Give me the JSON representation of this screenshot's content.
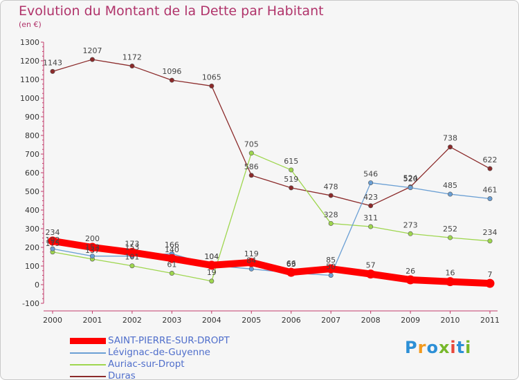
{
  "title": "Evolution du Montant de la Dette par Habitant",
  "subtitle": "(en €)",
  "logo": {
    "text": "Proxiti",
    "colors": [
      "#2c8fd6",
      "#f29a1f",
      "#2c8fd6",
      "#77b82a",
      "#e8483b",
      "#2c8fd6",
      "#77b82a"
    ]
  },
  "chart_data": {
    "type": "line",
    "x": [
      "2000",
      "2001",
      "2002",
      "2003",
      "2004",
      "2005",
      "2006",
      "2007",
      "2008",
      "2009",
      "2010",
      "2011"
    ],
    "ylim": [
      -100,
      1300
    ],
    "yticks": [
      -100,
      0,
      100,
      200,
      300,
      400,
      500,
      600,
      700,
      800,
      900,
      1000,
      1100,
      1200,
      1300
    ],
    "grid": false,
    "legend_position": "bottom",
    "series": [
      {
        "name": "SAINT-PIERRE-SUR-DROPT",
        "color": "#ff0000",
        "width": 10,
        "labels": true,
        "values": [
          234,
          200,
          173,
          140,
          104,
          119,
          66,
          85,
          57,
          26,
          16,
          7
        ]
      },
      {
        "name": "Lévignac-de-Guyenne",
        "color": "#6a9fd4",
        "width": 1.3,
        "labels": true,
        "values": [
          192,
          153,
          153,
          166,
          104,
          84,
          63,
          50,
          546,
          520,
          485,
          461
        ]
      },
      {
        "name": "Auriac-sur-Dropt",
        "color": "#9ed64e",
        "width": 1.3,
        "labels": true,
        "values": [
          175,
          137,
          101,
          61,
          19,
          705,
          615,
          328,
          311,
          273,
          252,
          234
        ]
      },
      {
        "name": "Duras",
        "color": "#8b2a2a",
        "width": 1.3,
        "labels": true,
        "values": [
          1143,
          1207,
          1172,
          1096,
          1065,
          586,
          519,
          478,
          423,
          524,
          738,
          622
        ]
      }
    ]
  }
}
